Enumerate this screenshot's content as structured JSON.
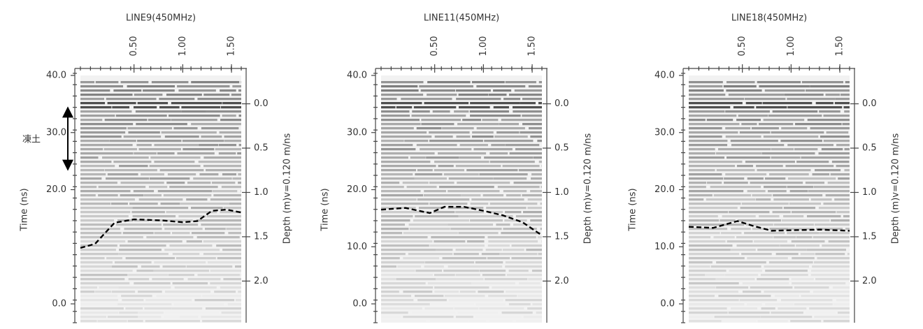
{
  "chart_data": [
    {
      "type": "radargram",
      "title": "LINE9(450MHz)",
      "ylabel": "Time (ns)",
      "y2label": "Depth (m)v=0.120 m/ns",
      "annotation": "凍土",
      "xlim": [
        -0.05,
        1.6
      ],
      "xticks": [
        {
          "value": 0.5,
          "label": "0.50"
        },
        {
          "value": 1,
          "label": "1.00"
        },
        {
          "value": 1.5,
          "label": "1.50"
        }
      ],
      "ylim": [
        -3.3,
        40
      ],
      "yticks": [
        {
          "value": 0,
          "label": "0.0"
        },
        {
          "value": 20,
          "label": "20.0"
        },
        {
          "value": 30,
          "label": "30.0"
        },
        {
          "value": 40,
          "label": "40.0"
        }
      ],
      "y2lim": [
        -0.32,
        2.47
      ],
      "y2ticks": [
        {
          "value": 0,
          "label": "0.0"
        },
        {
          "value": 0.5,
          "label": "0.5"
        },
        {
          "value": 1,
          "label": "1.0"
        },
        {
          "value": 1.5,
          "label": "1.5"
        },
        {
          "value": 2,
          "label": "2.0"
        }
      ],
      "boundary": {
        "x": [
          -0.05,
          0.1,
          0.3,
          0.5,
          0.8,
          1.0,
          1.15,
          1.3,
          1.45,
          1.6
        ],
        "values": [
          9.8,
          10.5,
          14.2,
          14.8,
          14.6,
          14.3,
          14.5,
          16.3,
          16.5,
          16.0
        ]
      }
    },
    {
      "type": "radargram",
      "title": "LINE11(450MHz)",
      "ylabel": "Time (ns)",
      "y2label": "Depth (m)v=0.120 m/ns",
      "xlim": [
        -0.05,
        1.6
      ],
      "xticks": [
        {
          "value": 0.5,
          "label": "0.50"
        },
        {
          "value": 1,
          "label": "1.00"
        },
        {
          "value": 1.5,
          "label": "1.50"
        }
      ],
      "ylim": [
        -3.3,
        40
      ],
      "yticks": [
        {
          "value": 0,
          "label": "0.0"
        },
        {
          "value": 10,
          "label": "10.0"
        },
        {
          "value": 20,
          "label": "20.0"
        },
        {
          "value": 30,
          "label": "30.0"
        },
        {
          "value": 40,
          "label": "40.0"
        }
      ],
      "y2lim": [
        -0.32,
        2.47
      ],
      "y2ticks": [
        {
          "value": 0,
          "label": "0.0"
        },
        {
          "value": 0.5,
          "label": "0.5"
        },
        {
          "value": 1,
          "label": "1.0"
        },
        {
          "value": 1.5,
          "label": "1.5"
        },
        {
          "value": 2,
          "label": "2.0"
        }
      ],
      "boundary": {
        "x": [
          -0.05,
          0.2,
          0.45,
          0.6,
          0.8,
          1.0,
          1.2,
          1.4,
          1.6
        ],
        "values": [
          16.5,
          16.8,
          15.9,
          17.0,
          17.0,
          16.3,
          15.5,
          14.3,
          12.0
        ]
      }
    },
    {
      "type": "radargram",
      "title": "LINE18(450MHz)",
      "ylabel": "Time (ns)",
      "y2label": "Depth (m)v=0.120 m/ns",
      "xlim": [
        -0.05,
        1.6
      ],
      "xticks": [
        {
          "value": 0.5,
          "label": "0.50"
        },
        {
          "value": 1,
          "label": "1.00"
        },
        {
          "value": 1.5,
          "label": "1.50"
        }
      ],
      "ylim": [
        -3.3,
        40
      ],
      "yticks": [
        {
          "value": 0,
          "label": "0.0"
        },
        {
          "value": 10,
          "label": "10.0"
        },
        {
          "value": 20,
          "label": "20.0"
        },
        {
          "value": 30,
          "label": "30.0"
        },
        {
          "value": 40,
          "label": "40.0"
        }
      ],
      "y2lim": [
        -0.32,
        2.47
      ],
      "y2ticks": [
        {
          "value": 0,
          "label": "0.0"
        },
        {
          "value": 0.5,
          "label": "0.5"
        },
        {
          "value": 1,
          "label": "1.0"
        },
        {
          "value": 1.5,
          "label": "1.5"
        },
        {
          "value": 2,
          "label": "2.0"
        }
      ],
      "boundary": {
        "x": [
          -0.05,
          0.2,
          0.45,
          0.6,
          0.8,
          1.0,
          1.3,
          1.6
        ],
        "values": [
          13.5,
          13.3,
          14.5,
          13.7,
          12.8,
          12.9,
          13.0,
          12.8
        ]
      }
    }
  ]
}
